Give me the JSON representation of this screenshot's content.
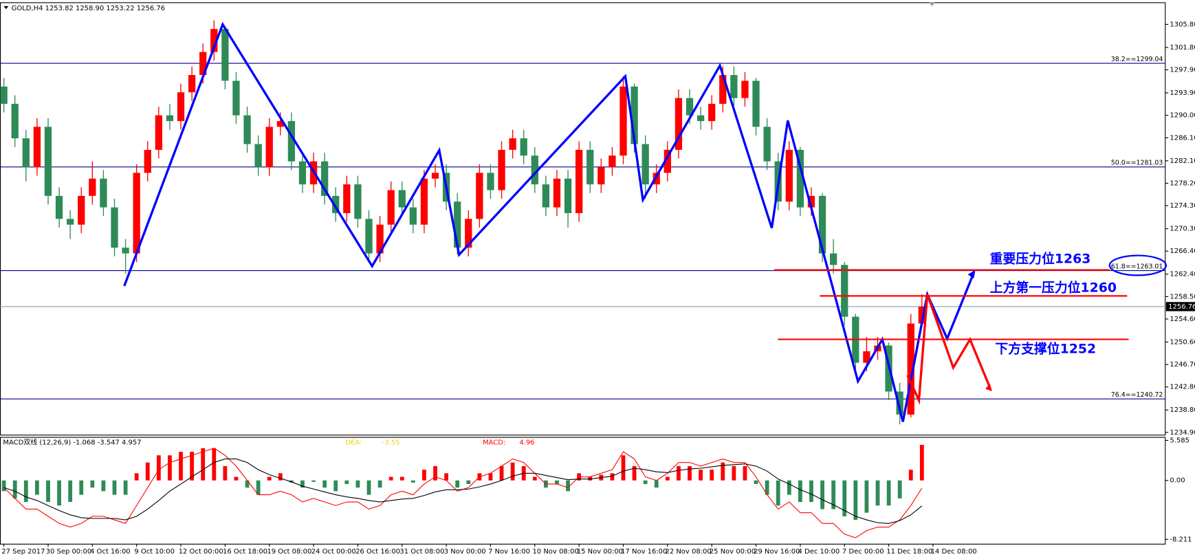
{
  "chart_data": [
    {
      "type": "candlestick",
      "title": "GOLD,H4  1253.82 1258.90 1253.22 1256.76",
      "xlim": [
        -0.35,
        105
      ],
      "xticks": [
        {
          "value": 0,
          "label": "27 Sep 2017"
        },
        {
          "value": 4,
          "label": "30 Sep 00:00"
        },
        {
          "value": 8,
          "label": "4 Oct 16:00"
        },
        {
          "value": 12,
          "label": "9 Oct 10:00"
        },
        {
          "value": 16,
          "label": "12 Oct 00:00"
        },
        {
          "value": 20,
          "label": "16 Oct 18:00"
        },
        {
          "value": 24,
          "label": "19 Oct 08:00"
        },
        {
          "value": 28,
          "label": "24 Oct 00:00"
        },
        {
          "value": 32,
          "label": "26 Oct 16:00"
        },
        {
          "value": 36,
          "label": "31 Oct 08:00"
        },
        {
          "value": 40,
          "label": "3 Nov 00:00"
        },
        {
          "value": 44,
          "label": "7 Nov 16:00"
        },
        {
          "value": 48,
          "label": "10 Nov 08:00"
        },
        {
          "value": 52,
          "label": "15 Nov 00:00"
        },
        {
          "value": 56,
          "label": "17 Nov 16:00"
        },
        {
          "value": 60,
          "label": "22 Nov 08:00"
        },
        {
          "value": 64,
          "label": "25 Nov 00:00"
        },
        {
          "value": 68,
          "label": "29 Nov 16:00"
        },
        {
          "value": 72,
          "label": "4 Dec 10:00"
        },
        {
          "value": 76,
          "label": "7 Dec 00:00"
        },
        {
          "value": 80,
          "label": "11 Dec 18:00"
        },
        {
          "value": 84,
          "label": "14 Dec 08:00"
        }
      ],
      "ylim": [
        1234.5,
        1309.64
      ],
      "yticks": [
        {
          "value": 1305.8,
          "label": "1305.80"
        },
        {
          "value": 1301.8,
          "label": "1301.80"
        },
        {
          "value": 1297.9,
          "label": "1297.90"
        },
        {
          "value": 1293.9,
          "label": "1293.90"
        },
        {
          "value": 1290,
          "label": "1290.00"
        },
        {
          "value": 1286.1,
          "label": "1286.10"
        },
        {
          "value": 1282.1,
          "label": "1282.10"
        },
        {
          "value": 1278.2,
          "label": "1278.20"
        },
        {
          "value": 1274.3,
          "label": "1274.30"
        },
        {
          "value": 1270.3,
          "label": "1270.30"
        },
        {
          "value": 1266.4,
          "label": "1266.40"
        },
        {
          "value": 1262.4,
          "label": "1262.40"
        },
        {
          "value": 1258.5,
          "label": "1258.50"
        },
        {
          "value": 1254.6,
          "label": "1254.60"
        },
        {
          "value": 1250.6,
          "label": "1250.60"
        },
        {
          "value": 1246.7,
          "label": "1246.70"
        },
        {
          "value": 1242.8,
          "label": "1242.80"
        },
        {
          "value": 1238.8,
          "label": "1238.80"
        },
        {
          "value": 1234.9,
          "label": "1234.90"
        }
      ],
      "up_color": "#ff0000",
      "down_color": "#2e8b57",
      "open": [
        1295,
        1292,
        1286,
        1281,
        1288,
        1276,
        1272,
        1271,
        1276,
        1279,
        1274,
        1267,
        1266,
        1280,
        1284,
        1290,
        1289,
        1294,
        1297,
        1301,
        1305,
        1296,
        1290,
        1285,
        1281,
        1288,
        1289,
        1282,
        1278,
        1282,
        1276,
        1273,
        1278,
        1272,
        1266,
        1271,
        1277,
        1274,
        1271,
        1279,
        1280,
        1275,
        1267,
        1272,
        1280,
        1277,
        1284,
        1286,
        1283,
        1278,
        1274,
        1279,
        1273,
        1284,
        1278,
        1281,
        1283,
        1295,
        1285,
        1278,
        1280,
        1284,
        1293,
        1290,
        1289,
        1292,
        1297,
        1293,
        1296,
        1288,
        1282,
        1275,
        1284,
        1274,
        1276,
        1266,
        1264,
        1255,
        1247,
        1249,
        1250,
        1242,
        1238,
        1253.82
      ],
      "high": [
        1296.5,
        1293.5,
        1287.5,
        1289.5,
        1289.5,
        1277.5,
        1273.5,
        1277.5,
        1282,
        1280.5,
        1275.5,
        1268.5,
        1281.5,
        1285.5,
        1291.5,
        1292,
        1295.5,
        1298.5,
        1302.5,
        1306.5,
        1305.5,
        1297.5,
        1291.5,
        1286.5,
        1289.5,
        1290.5,
        1290.5,
        1283.5,
        1283.5,
        1283.5,
        1277.5,
        1279.5,
        1279.5,
        1273.5,
        1272.5,
        1278.5,
        1278.5,
        1275.5,
        1280.5,
        1281.5,
        1281.5,
        1276.5,
        1273.5,
        1281.5,
        1281.5,
        1285.5,
        1287.5,
        1287.5,
        1284.5,
        1279.5,
        1280.5,
        1280.5,
        1285.5,
        1285.5,
        1282.5,
        1284.5,
        1296.8,
        1295.5,
        1286.5,
        1281.5,
        1285.5,
        1294.5,
        1294.5,
        1291.5,
        1293.5,
        1298.5,
        1298.5,
        1297.5,
        1296.5,
        1289.5,
        1283.5,
        1285.5,
        1284.5,
        1277.5,
        1276.5,
        1268.5,
        1264.5,
        1255.5,
        1251.5,
        1251.5,
        1250.5,
        1243.5,
        1255.5,
        1258.9
      ],
      "low": [
        1290.5,
        1284.5,
        1278.5,
        1279.5,
        1274.5,
        1270.5,
        1268.5,
        1269.5,
        1274.5,
        1272.5,
        1265.5,
        1262.5,
        1264.5,
        1278.5,
        1282.5,
        1287.5,
        1287.5,
        1292.5,
        1295.5,
        1299.5,
        1294.5,
        1288.5,
        1283.5,
        1279.5,
        1279.5,
        1286.5,
        1280.5,
        1276.5,
        1276.5,
        1274.5,
        1271.5,
        1271.5,
        1270.5,
        1264.5,
        1264.5,
        1269.5,
        1272.5,
        1269.5,
        1269.5,
        1277.5,
        1273.5,
        1265.8,
        1265.5,
        1270.5,
        1275.5,
        1275.5,
        1282.5,
        1281.5,
        1276.5,
        1272.5,
        1272.5,
        1270.5,
        1271.5,
        1276.5,
        1276.5,
        1279.5,
        1281.5,
        1283.5,
        1275.5,
        1276.5,
        1278.5,
        1282.5,
        1288.5,
        1287.5,
        1287.5,
        1290.5,
        1291.5,
        1291.5,
        1286.5,
        1280.5,
        1273.5,
        1273.5,
        1272.5,
        1272.5,
        1264.5,
        1262.5,
        1253.5,
        1245.5,
        1245.5,
        1247.5,
        1240.5,
        1236.3,
        1237.5,
        1253.22
      ],
      "close": [
        1292,
        1286,
        1281,
        1288,
        1276,
        1272,
        1271,
        1276,
        1279,
        1274,
        1267,
        1266,
        1280,
        1284,
        1290,
        1289,
        1294,
        1297,
        1301,
        1305,
        1296,
        1290,
        1285,
        1281,
        1288,
        1289,
        1282,
        1278,
        1282,
        1276,
        1273,
        1278,
        1272,
        1266,
        1271,
        1277,
        1274,
        1271,
        1279,
        1280,
        1275,
        1267,
        1272,
        1280,
        1277,
        1284,
        1286,
        1283,
        1278,
        1274,
        1279,
        1273,
        1284,
        1278,
        1281,
        1283,
        1295,
        1285,
        1278,
        1280,
        1284,
        1293,
        1290,
        1289,
        1292,
        1297,
        1293,
        1296,
        1288,
        1282,
        1275,
        1284,
        1274,
        1276,
        1266,
        1264,
        1255,
        1247,
        1249,
        1250,
        1242,
        1238,
        1253.82,
        1256.76
      ],
      "fib_color": "#00008b",
      "fib_levels": [
        {
          "value": 1299.04,
          "label": "38.2==1299.04"
        },
        {
          "value": 1281.03,
          "label": "50.0==1281.03"
        },
        {
          "value": 1263.01,
          "label": "61.8==1263.01"
        },
        {
          "value": 1240.72,
          "label": "76.4==1240.72"
        }
      ],
      "last_price": 1256.76,
      "annotations": [
        "重要压力位1263",
        "上方第一压力位1260",
        "下方支撑位1252"
      ]
    },
    {
      "type": "macd",
      "title": "MACD双线 (12,26,9) -1.068 -3.547 4.957",
      "ylim": [
        -8.83,
        6.06
      ],
      "yticks": [
        5.585,
        {
          "value": 0,
          "label": "0.00"
        },
        -8.211
      ],
      "positive_color": "#ff0000",
      "negative_color": "#2e8b57",
      "histogram": [
        -1.5,
        -2.5,
        -3,
        -2,
        -3,
        -3.5,
        -3,
        -2,
        -1,
        -1.5,
        -2,
        -2,
        1,
        2.5,
        3.5,
        3.5,
        4,
        4,
        4.5,
        4.5,
        2,
        0.5,
        -1,
        -2,
        0.5,
        1,
        -0.3,
        -1,
        -0.2,
        -1,
        -1.5,
        -0.5,
        -1,
        -2,
        -1,
        0.5,
        0.5,
        -0.3,
        1.5,
        2,
        1,
        -1,
        -0.5,
        1,
        1,
        2,
        2.5,
        2,
        0.5,
        -1,
        -0.5,
        -1.5,
        1,
        0.5,
        0.8,
        1,
        3.5,
        2,
        -0.5,
        -1,
        0.5,
        2,
        2,
        1.5,
        1.5,
        2.5,
        2,
        2,
        -0.5,
        -2,
        -3.5,
        -2,
        -3,
        -3,
        -4,
        -4,
        -5,
        -5.5,
        -4.5,
        -3.5,
        -3.5,
        -2.5,
        1.5,
        4.96
      ],
      "lines": [
        {
          "color": "#ff0000",
          "values": [
            -1,
            -2.5,
            -4,
            -4,
            -5,
            -6,
            -6.5,
            -6,
            -5,
            -5,
            -5.5,
            -6,
            -3.5,
            -1,
            1.5,
            2.5,
            3,
            3.5,
            4,
            4.5,
            3.5,
            2,
            0,
            -2,
            -2,
            -1.5,
            -2,
            -3,
            -2.5,
            -3,
            -3.5,
            -3,
            -3,
            -4,
            -3.5,
            -2,
            -1.5,
            -2,
            -0.5,
            0.5,
            0,
            -1.5,
            -1,
            0.5,
            1,
            2,
            3,
            2.5,
            1,
            -0.5,
            -0.5,
            -1,
            0.5,
            0.5,
            1,
            1.5,
            4,
            3,
            0.5,
            0,
            1,
            2.5,
            2.5,
            2,
            2.5,
            3,
            2.5,
            2.5,
            0.5,
            -2,
            -4,
            -3,
            -4.5,
            -4.5,
            -6,
            -6,
            -7.5,
            -8,
            -7,
            -6.5,
            -6.5,
            -5.5,
            -3.5,
            -1.068
          ]
        },
        {
          "color": "#000000",
          "values": [
            -1,
            -1.5,
            -2.3,
            -2.8,
            -3.5,
            -4.2,
            -4.8,
            -5.2,
            -5.3,
            -5.3,
            -5.3,
            -5.5,
            -5,
            -4,
            -2.8,
            -1.5,
            -0.5,
            0.5,
            1.5,
            2.5,
            3,
            3,
            2.5,
            1.5,
            0.8,
            0.3,
            -0.2,
            -0.8,
            -1.2,
            -1.6,
            -2,
            -2.3,
            -2.5,
            -2.8,
            -3,
            -2.8,
            -2.6,
            -2.5,
            -2.1,
            -1.6,
            -1.3,
            -1.3,
            -1.2,
            -0.9,
            -0.5,
            0,
            0.6,
            1,
            1,
            0.7,
            0.4,
            0.1,
            0.2,
            0.2,
            0.4,
            0.6,
            1.3,
            1.7,
            1.5,
            1.2,
            1.1,
            1.4,
            1.6,
            1.7,
            1.9,
            2.1,
            2.2,
            2.3,
            2,
            1.3,
            0.2,
            -0.5,
            -1.3,
            -1.9,
            -2.7,
            -3.4,
            -4.2,
            -5,
            -5.5,
            -5.9,
            -6,
            -5.6,
            -4.8,
            -3.547
          ]
        }
      ],
      "readouts": [
        {
          "label": "DEA:",
          "value": -3.55,
          "color": "#e6d600"
        },
        {
          "label": "MACD:",
          "value": 4.96,
          "color": "#ff0000"
        }
      ]
    }
  ]
}
